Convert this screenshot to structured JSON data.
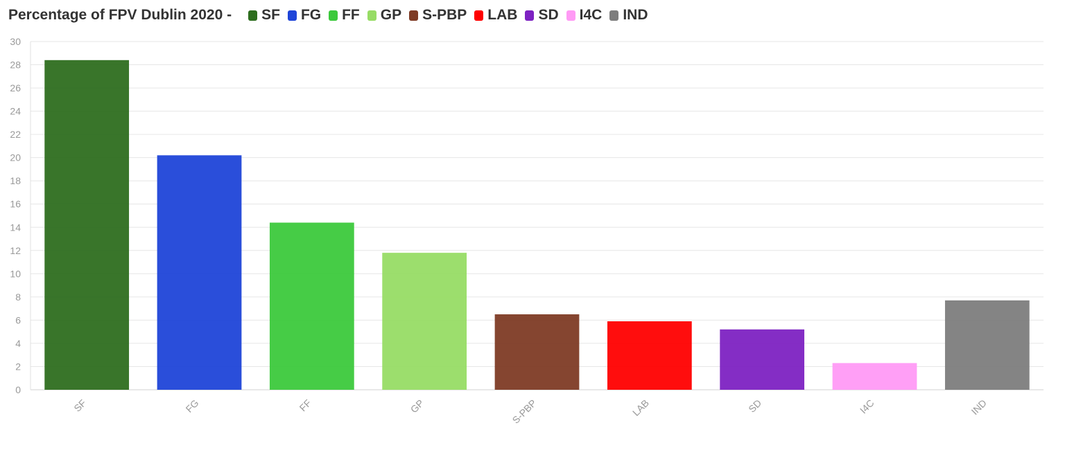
{
  "title": "Percentage of FPV Dublin 2020 -",
  "chart_data": {
    "type": "bar",
    "title": "Percentage of FPV Dublin 2020 -",
    "categories": [
      "SF",
      "FG",
      "FF",
      "GP",
      "S-PBP",
      "LAB",
      "SD",
      "I4C",
      "IND"
    ],
    "values": [
      28.4,
      20.2,
      14.4,
      11.8,
      6.5,
      5.9,
      5.2,
      2.3,
      7.7
    ],
    "colors": [
      "#2e6e1f",
      "#1f45d8",
      "#3cc93c",
      "#97dc65",
      "#7e3b25",
      "#ff0000",
      "#7d22c2",
      "#ff9af5",
      "#7d7d7d"
    ],
    "xlabel": "",
    "ylabel": "",
    "ylim": [
      0,
      30
    ],
    "yticks": [
      0,
      2,
      4,
      6,
      8,
      10,
      12,
      14,
      16,
      18,
      20,
      22,
      24,
      26,
      28,
      30
    ],
    "grid": true,
    "legend": {
      "placement": "top",
      "entries": [
        "SF",
        "FG",
        "FF",
        "GP",
        "S-PBP",
        "LAB",
        "SD",
        "I4C",
        "IND"
      ]
    }
  }
}
